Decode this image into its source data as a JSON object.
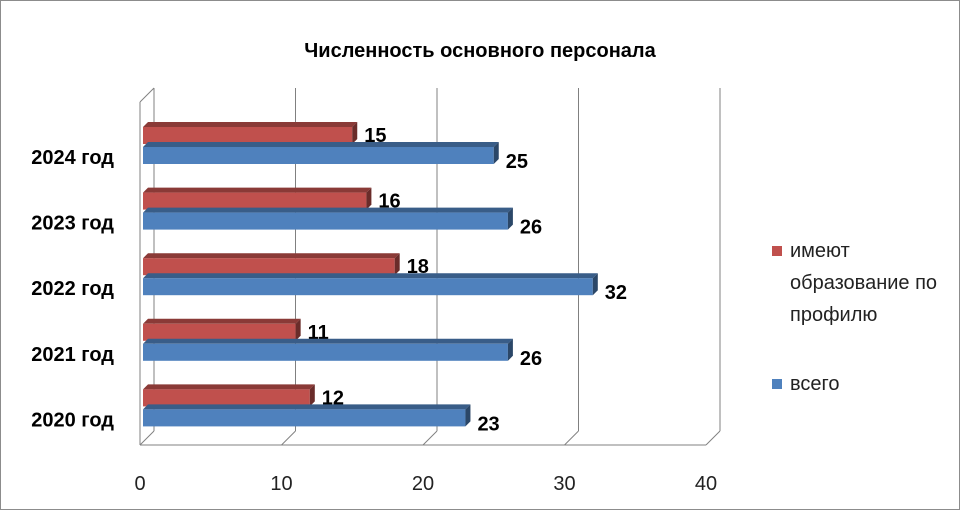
{
  "chart_data": {
    "type": "bar",
    "orientation": "horizontal",
    "title": "Численность основного персонала",
    "categories": [
      "2024 год",
      "2023 год",
      "2022 год",
      "2021 год",
      "2020 год"
    ],
    "series": [
      {
        "name": " имеют образование по профилю",
        "color": "#c0504d",
        "values": [
          15,
          16,
          18,
          11,
          12
        ]
      },
      {
        "name": "всего",
        "color": "#4f81bd",
        "values": [
          25,
          26,
          32,
          26,
          23
        ]
      }
    ],
    "xlim": [
      0,
      40
    ],
    "x_ticks": [
      "0",
      "10",
      "20",
      "30",
      "40"
    ],
    "grid": true,
    "legend_position": "right"
  },
  "legend": {
    "profile_label": " имеют\nобразование по\nпрофилю",
    "total_label": "всего"
  }
}
